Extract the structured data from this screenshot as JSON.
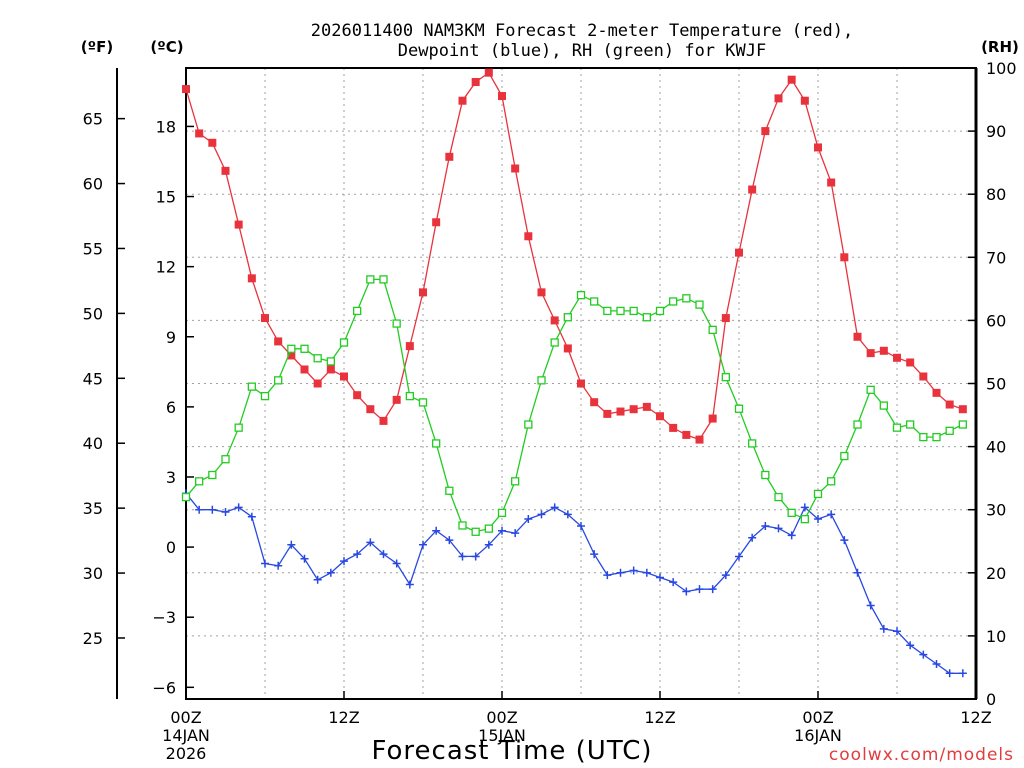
{
  "chart_data": {
    "type": "line",
    "title_line1": "2026011400 NAM3KM Forecast 2-meter Temperature (red),",
    "title_line2": "Dewpoint (blue), RH (green) for KWJF",
    "xlabel": "Forecast Time (UTC)",
    "credit": "coolwx.com/models",
    "unit_f": "(ºF)",
    "unit_c": "(ºC)",
    "unit_rh": "(RH)",
    "x_range": [
      0,
      60
    ],
    "x_ticks": [
      {
        "x": 0,
        "label": "00Z",
        "date": "14JAN",
        "year": "2026"
      },
      {
        "x": 12,
        "label": "12Z",
        "date": "",
        "year": ""
      },
      {
        "x": 24,
        "label": "00Z",
        "date": "15JAN",
        "year": ""
      },
      {
        "x": 36,
        "label": "12Z",
        "date": "",
        "year": ""
      },
      {
        "x": 48,
        "label": "00Z",
        "date": "16JAN",
        "year": ""
      },
      {
        "x": 60,
        "label": "12Z",
        "date": "",
        "year": ""
      }
    ],
    "c_range": [
      -6.5,
      20.5
    ],
    "c_ticks": [
      "18",
      "15",
      "12",
      "9",
      "6",
      "3",
      "0",
      "−3",
      "−6"
    ],
    "f_ticks": [
      "65",
      "60",
      "55",
      "50",
      "45",
      "40",
      "35",
      "30",
      "25"
    ],
    "rh_range": [
      0,
      100
    ],
    "rh_ticks": [
      "100",
      "90",
      "80",
      "70",
      "60",
      "50",
      "40",
      "30",
      "20",
      "10",
      "0"
    ],
    "series": [
      {
        "name": "Temperature (°C)",
        "color": "#e8323c",
        "marker": "filled-square",
        "axis": "c",
        "values": [
          19.6,
          17.7,
          17.3,
          16.1,
          13.8,
          11.5,
          9.8,
          8.8,
          8.2,
          7.6,
          7.0,
          7.6,
          7.3,
          6.5,
          5.9,
          5.4,
          6.3,
          8.6,
          10.9,
          13.9,
          16.7,
          19.1,
          19.9,
          20.3,
          19.3,
          16.2,
          13.3,
          10.9,
          9.7,
          8.5,
          7.0,
          6.2,
          5.7,
          5.8,
          5.9,
          6.0,
          5.6,
          5.1,
          4.8,
          4.6,
          5.5,
          9.8,
          12.6,
          15.3,
          17.8,
          19.2,
          20.0,
          19.1,
          17.1,
          15.6,
          12.4,
          9.0,
          8.3,
          8.4,
          8.1,
          7.9,
          7.3,
          6.6,
          6.1,
          5.9
        ]
      },
      {
        "name": "Dewpoint (°C)",
        "color": "#2848e0",
        "marker": "plus",
        "axis": "c",
        "values": [
          2.3,
          1.6,
          1.6,
          1.5,
          1.7,
          1.3,
          -0.7,
          -0.8,
          0.1,
          -0.5,
          -1.4,
          -1.1,
          -0.6,
          -0.3,
          0.2,
          -0.3,
          -0.7,
          -1.6,
          0.1,
          0.7,
          0.3,
          -0.4,
          -0.4,
          0.1,
          0.7,
          0.6,
          1.2,
          1.4,
          1.7,
          1.4,
          0.9,
          -0.3,
          -1.2,
          -1.1,
          -1.0,
          -1.1,
          -1.3,
          -1.5,
          -1.9,
          -1.8,
          -1.8,
          -1.2,
          -0.4,
          0.4,
          0.9,
          0.8,
          0.5,
          1.7,
          1.2,
          1.4,
          0.3,
          -1.1,
          -2.5,
          -3.5,
          -3.6,
          -4.2,
          -4.6,
          -5.0,
          -5.4,
          -5.4
        ]
      },
      {
        "name": "RH (%)",
        "color": "#22cc22",
        "marker": "open-square",
        "axis": "rh",
        "values": [
          32,
          34.5,
          35.5,
          38,
          43,
          49.5,
          48,
          50.5,
          55.5,
          55.5,
          54,
          53.5,
          56.5,
          61.5,
          66.5,
          66.5,
          59.5,
          48,
          47,
          40.5,
          33,
          27.5,
          26.5,
          27,
          29.5,
          34.5,
          43.5,
          50.5,
          56.5,
          60.5,
          64,
          63,
          61.5,
          61.5,
          61.5,
          60.5,
          61.5,
          63,
          63.5,
          62.5,
          58.5,
          51,
          46,
          40.5,
          35.5,
          32,
          29.5,
          28.5,
          32.5,
          34.5,
          38.5,
          43.5,
          49,
          46.5,
          43,
          43.5,
          41.5,
          41.5,
          42.5,
          43.5
        ]
      }
    ]
  }
}
